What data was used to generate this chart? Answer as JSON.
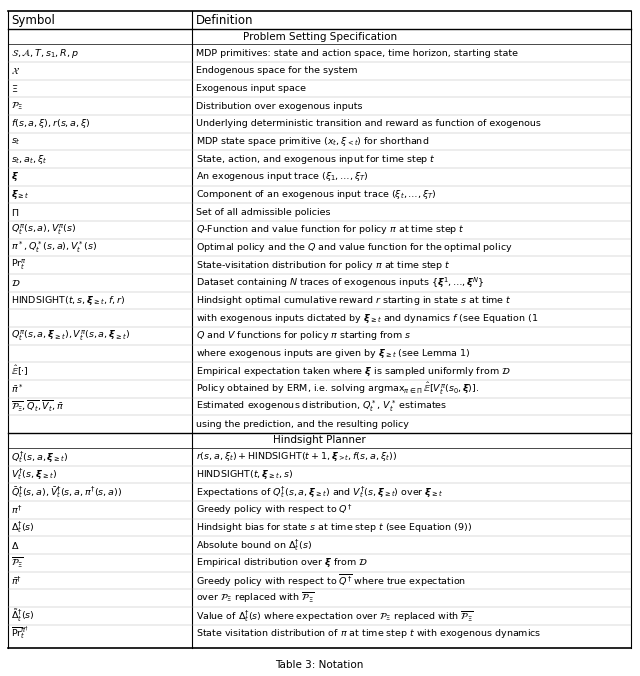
{
  "title": "Table: Notation",
  "col1_header": "Symbol",
  "col2_header": "Definition",
  "section1_title": "Problem Setting Specification",
  "section2_title": "Hindsight Planner",
  "rows_section1": [
    [
      "$\\mathcal{S}, \\mathcal{A}, T, s_1, R, p$",
      "MDP primitives: state and action space, time horizon, starting state"
    ],
    [
      "$\\mathcal{X}$",
      "Endogenous space for the system"
    ],
    [
      "$\\Xi$",
      "Exogenous input space"
    ],
    [
      "$\\mathcal{P}_{\\Xi}$",
      "Distribution over exogenous inputs"
    ],
    [
      "$f(s,a,\\xi), r(s,a,\\xi)$",
      "Underlying deterministic transition and reward as function of exogenous"
    ],
    [
      "$s_t$",
      "MDP state space primitive $(x_t, \\xi_{<t})$ for shorthand"
    ],
    [
      "$s_t, a_t, \\xi_t$",
      "State, action, and exogenous input for time step $t$"
    ],
    [
      "$\\boldsymbol{\\xi}$",
      "An exogenous input trace $(\\xi_1, \\ldots, \\xi_T)$"
    ],
    [
      "$\\boldsymbol{\\xi}_{\\geq t}$",
      "Component of an exogenous input trace $(\\xi_t, \\ldots, \\xi_T)$"
    ],
    [
      "$\\Pi$",
      "Set of all admissible policies"
    ],
    [
      "$Q_t^{\\pi}(s,a), V_t^{\\pi}(s)$",
      "$Q$-Function and value function for policy $\\pi$ at time step $t$"
    ],
    [
      "$\\pi^*, Q_t^*(s,a), V_t^*(s)$",
      "Optimal policy and the $Q$ and value function for the optimal policy"
    ],
    [
      "$\\mathrm{Pr}_t^{\\pi}$",
      "State-visitation distribution for policy $\\pi$ at time step $t$"
    ],
    [
      "$\\mathcal{D}$",
      "Dataset containing $N$ traces of exogenous inputs $\\{\\boldsymbol{\\xi}^1, \\ldots, \\boldsymbol{\\xi}^N\\}$"
    ],
    [
      "$\\mathrm{HINDSIGHT}(t, s, \\boldsymbol{\\xi}_{\\geq t}, f, r)$",
      "Hindsight optimal cumulative reward $r$ starting in state $s$ at time $t$"
    ],
    [
      "",
      "with exogenous inputs dictated by $\\boldsymbol{\\xi}_{\\geq t}$ and dynamics $f$ (see Equation (1"
    ],
    [
      "$Q_t^{\\pi}(s,a,\\boldsymbol{\\xi}_{\\geq t}), V_t^{\\pi}(s,a,\\boldsymbol{\\xi}_{\\geq t})$",
      "$Q$ and $V$ functions for policy $\\pi$ starting from $s$"
    ],
    [
      "",
      "where exogenous inputs are given by $\\boldsymbol{\\xi}_{\\geq t}$ (see Lemma 1)"
    ],
    [
      "$\\hat{\\mathbb{E}}[\\cdot]$",
      "Empirical expectation taken where $\\boldsymbol{\\xi}$ is sampled uniformly from $\\mathcal{D}$"
    ],
    [
      "$\\bar{\\pi}^*$",
      "Policy obtained by ERM, i.e. solving $\\mathrm{argmax}_{\\pi \\in \\Pi}\\, \\hat{\\mathbb{E}}[V_t^{\\pi}(s_0, \\boldsymbol{\\xi})]$."
    ],
    [
      "$\\overline{\\mathcal{P}_{\\Xi}}, \\overline{Q_t}, \\overline{V_t}, \\bar{\\pi}$",
      "Estimated exogenous distribution, $Q_t^*$, $V_t^*$ estimates"
    ],
    [
      "",
      "using the prediction, and the resulting policy"
    ]
  ],
  "rows_section2": [
    [
      "$Q_t^{\\dagger}(s,a,\\boldsymbol{\\xi}_{\\geq t})$",
      "$r(s,a,\\xi_t) + \\mathrm{HINDSIGHT}(t+1, \\boldsymbol{\\xi}_{>t}, f(s,a,\\xi_t))$"
    ],
    [
      "$V_t^{\\dagger}(s, \\boldsymbol{\\xi}_{\\geq t})$",
      "$\\mathrm{HINDSIGHT}(t, \\boldsymbol{\\xi}_{\\geq t}, s)$"
    ],
    [
      "$\\bar{Q}_t^{\\dagger}(s,a), \\bar{V}_t^{\\dagger}(s,a,\\pi^{\\dagger}(s,a))$",
      "Expectations of $Q_t^{\\dagger}(s,a,\\boldsymbol{\\xi}_{\\geq t})$ and $V_t^{\\dagger}(s,\\boldsymbol{\\xi}_{\\geq t})$ over $\\boldsymbol{\\xi}_{\\geq t}$"
    ],
    [
      "$\\pi^{\\dagger}$",
      "Greedy policy with respect to $Q^{\\dagger}$"
    ],
    [
      "$\\Delta_t^{\\dagger}(s)$",
      "Hindsight bias for state $s$ at time step $t$ (see Equation (9))"
    ],
    [
      "$\\Delta$",
      "Absolute bound on $\\Delta_t^{\\dagger}(s)$"
    ],
    [
      "$\\overline{\\mathcal{P}_{\\Xi}}$",
      "Empirical distribution over $\\boldsymbol{\\xi}$ from $\\mathcal{D}$"
    ],
    [
      "$\\bar{\\pi}^{\\dagger}$",
      "Greedy policy with respect to $\\overline{Q^{\\dagger}}$ where true expectation"
    ],
    [
      "",
      "over $\\mathcal{P}_{\\Xi}$ replaced with $\\overline{\\mathcal{P}_{\\Xi}}$"
    ],
    [
      "$\\tilde{\\Delta}_t^{\\dagger}(s)$",
      "Value of $\\Delta_t^{\\dagger}(s)$ where expectation over $\\mathcal{P}_{\\Xi}$ replaced with $\\overline{\\mathcal{P}_{\\Xi}}$"
    ],
    [
      "$\\overline{\\mathrm{Pr}}_t^{\\bar{\\pi}^{\\dagger}}$",
      "State visitation distribution of $\\pi$ at time step $t$ with exogenous dynamics"
    ]
  ],
  "figure_label": "Table 3: Notation"
}
